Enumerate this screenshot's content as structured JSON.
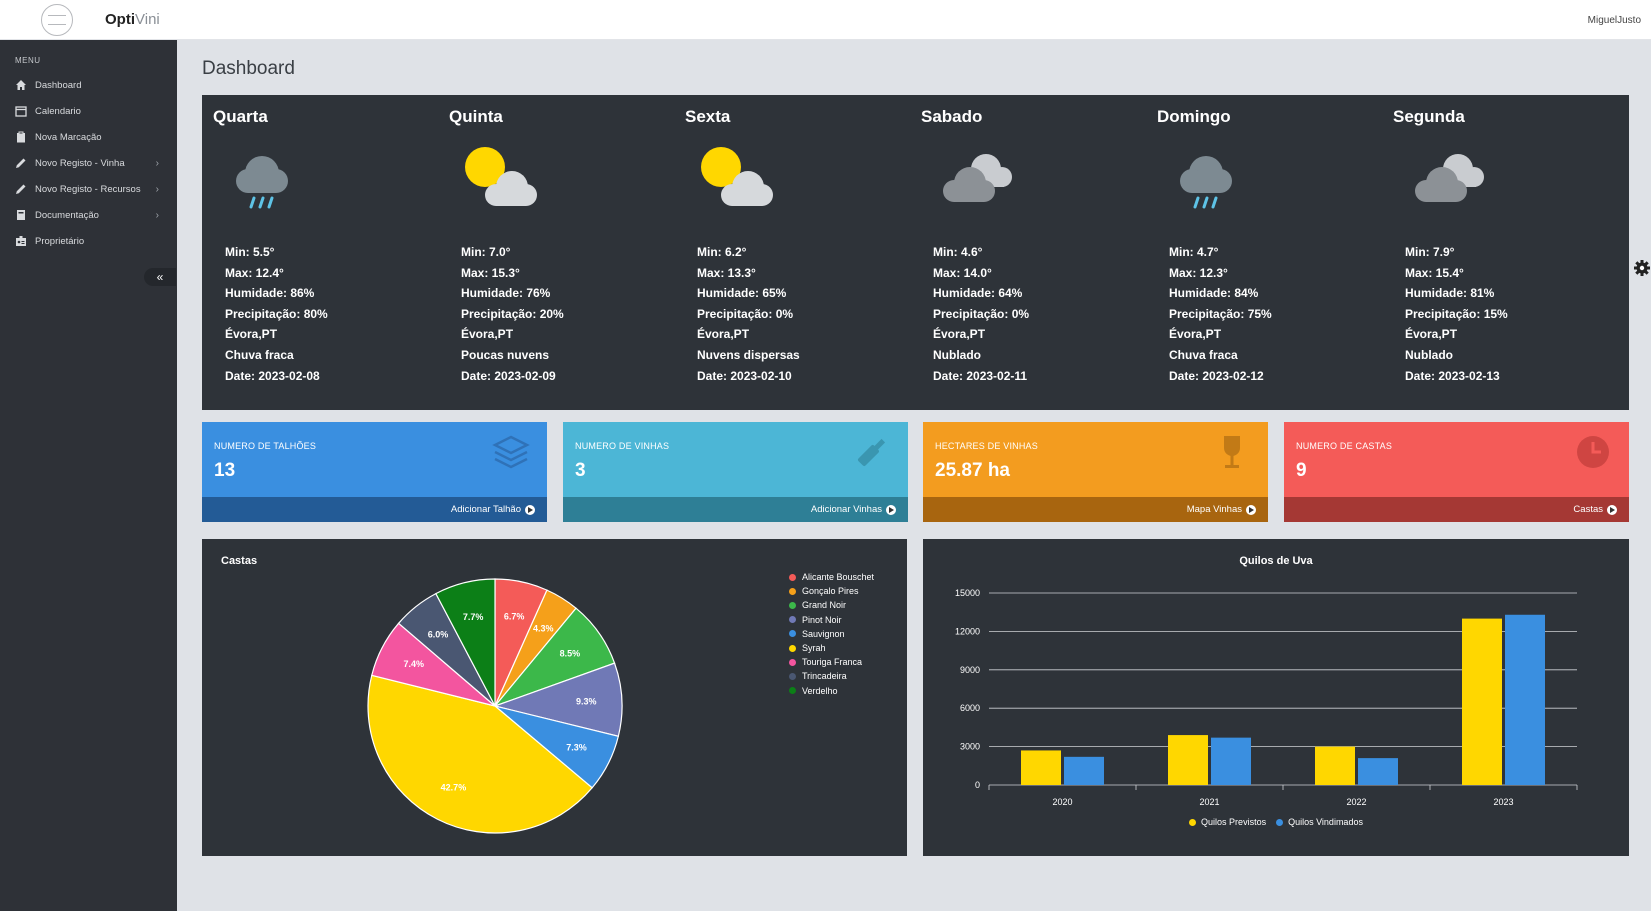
{
  "app": {
    "brand_bold": "Opti",
    "brand_light": "Vini",
    "user": "MiguelJusto"
  },
  "sidebar": {
    "menu_title": "MENU",
    "items": [
      {
        "label": "Dashboard",
        "icon": "home-icon"
      },
      {
        "label": "Calendario",
        "icon": "calendar-icon"
      },
      {
        "label": "Nova Marcação",
        "icon": "clipboard-icon"
      },
      {
        "label": "Novo Registo - Vinha",
        "icon": "pencil-icon",
        "has_children": true
      },
      {
        "label": "Novo Registo - Recursos",
        "icon": "pencil-icon",
        "has_children": true
      },
      {
        "label": "Documentação",
        "icon": "book-icon",
        "has_children": true
      },
      {
        "label": "Proprietário",
        "icon": "id-card-icon"
      }
    ],
    "collapse_label": "«"
  },
  "page_title": "Dashboard",
  "weather": [
    {
      "day": "Quarta",
      "icon": "rain-icon",
      "min": "Min: 5.5°",
      "max": "Max: 12.4°",
      "humidity": "Humidade: 86%",
      "precip": "Precipitação: 80%",
      "location": "Évora,PT",
      "desc": "Chuva fraca",
      "date": "Date: 2023-02-08"
    },
    {
      "day": "Quinta",
      "icon": "sun-cloud-icon",
      "min": "Min: 7.0°",
      "max": "Max: 15.3°",
      "humidity": "Humidade: 76%",
      "precip": "Precipitação: 20%",
      "location": "Évora,PT",
      "desc": "Poucas nuvens",
      "date": "Date: 2023-02-09"
    },
    {
      "day": "Sexta",
      "icon": "sun-cloud-icon",
      "min": "Min: 6.2°",
      "max": "Max: 13.3°",
      "humidity": "Humidade: 65%",
      "precip": "Precipitação: 0%",
      "location": "Évora,PT",
      "desc": "Nuvens dispersas",
      "date": "Date: 2023-02-10"
    },
    {
      "day": "Sabado",
      "icon": "cloud-icon",
      "min": "Min: 4.6°",
      "max": "Max: 14.0°",
      "humidity": "Humidade: 64%",
      "precip": "Precipitação: 0%",
      "location": "Évora,PT",
      "desc": "Nublado",
      "date": "Date: 2023-02-11"
    },
    {
      "day": "Domingo",
      "icon": "rain-icon",
      "min": "Min: 4.7°",
      "max": "Max: 12.3°",
      "humidity": "Humidade: 84%",
      "precip": "Precipitação: 75%",
      "location": "Évora,PT",
      "desc": "Chuva fraca",
      "date": "Date: 2023-02-12"
    },
    {
      "day": "Segunda",
      "icon": "cloud-icon",
      "min": "Min: 7.9°",
      "max": "Max: 15.4°",
      "humidity": "Humidade: 81%",
      "precip": "Precipitação: 15%",
      "location": "Évora,PT",
      "desc": "Nublado",
      "date": "Date: 2023-02-13"
    }
  ],
  "cards": [
    {
      "title": "NUMERO DE TALHÕES",
      "value": "13",
      "link": "Adicionar Talhão",
      "icon": "layers-icon",
      "color": "#3a8fe0",
      "foot_color": "#235b96"
    },
    {
      "title": "NUMERO DE VINHAS",
      "value": "3",
      "link": "Adicionar Vinhas",
      "icon": "bottle-icon",
      "color": "#4cb6d6",
      "foot_color": "#2e7f96"
    },
    {
      "title": "HECTARES DE VINHAS",
      "value": "25.87 ha",
      "link": "Mapa Vinhas",
      "icon": "wine-glass-icon",
      "color": "#f39c1f",
      "foot_color": "#a8650f"
    },
    {
      "title": "NUMERO DE CASTAS",
      "value": "9",
      "link": "Castas",
      "icon": "clock-icon",
      "color": "#f45b58",
      "foot_color": "#a53834"
    }
  ],
  "chart_data": [
    {
      "type": "pie",
      "title": "Castas",
      "categories": [
        "Alicante Bouschet",
        "Gonçalo Pires",
        "Grand Noir",
        "Pinot Noir",
        "Sauvignon",
        "Syrah",
        "Touriga Franca",
        "Trincadeira",
        "Verdelho"
      ],
      "values": [
        6.7,
        4.3,
        8.5,
        9.3,
        7.3,
        42.7,
        7.4,
        6.0,
        7.7
      ],
      "labels": [
        "6.7%",
        "4.3%",
        "8.5%",
        "9.3%",
        "7.3%",
        "42.7%",
        "7.4%",
        "6.0%",
        "7.7%"
      ],
      "colors": [
        "#f45b58",
        "#f5a01a",
        "#3cb84a",
        "#7079b6",
        "#3a8fe0",
        "#ffd700",
        "#f3559f",
        "#4a5772",
        "#0c7f17"
      ],
      "legend": "top-right"
    },
    {
      "type": "bar",
      "title": "Quilos de Uva",
      "categories": [
        "2020",
        "2021",
        "2022",
        "2023"
      ],
      "series": [
        {
          "name": "Quilos Previstos",
          "values": [
            2700,
            3900,
            3000,
            13000
          ],
          "color": "#ffd700"
        },
        {
          "name": "Quilos Vindimados",
          "values": [
            2200,
            3700,
            2100,
            13300
          ],
          "color": "#3a8fe0"
        }
      ],
      "yticks": [
        "0",
        "3000",
        "6000",
        "9000",
        "12000",
        "15000"
      ],
      "ylim": [
        0,
        15000
      ],
      "legend": "bottom"
    }
  ]
}
